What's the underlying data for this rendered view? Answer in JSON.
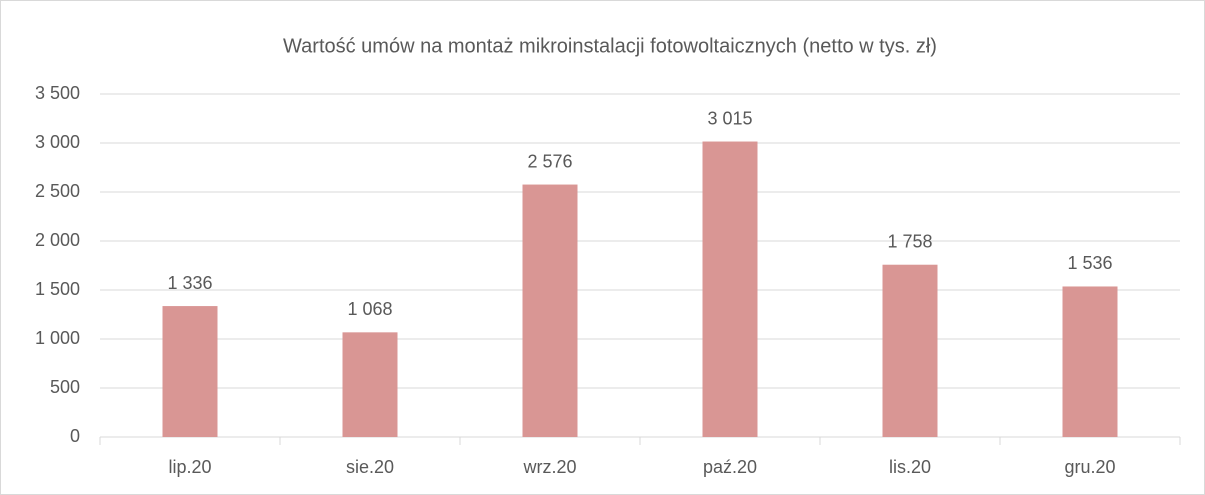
{
  "chart_data": {
    "type": "bar",
    "title": "Wartość umów na montaż mikroinstalacji fotowoltaicznych (netto w tys. zł)",
    "categories": [
      "lip.20",
      "sie.20",
      "wrz.20",
      "paź.20",
      "lis.20",
      "gru.20"
    ],
    "values": [
      1336,
      1068,
      2576,
      3015,
      1758,
      1536
    ],
    "value_labels": [
      "1 336",
      "1 068",
      "2 576",
      "3 015",
      "1 758",
      "1 536"
    ],
    "color": "#d99694",
    "ylim": [
      0,
      3500
    ],
    "yticks": [
      0,
      500,
      {
        "value": 1000,
        "label": "1 000"
      },
      {
        "value": 1500,
        "label": "1 500"
      },
      {
        "value": 2000,
        "label": "2 000"
      },
      {
        "value": 2500,
        "label": "2 500"
      },
      {
        "value": 3000,
        "label": "3 000"
      },
      {
        "value": 3500,
        "label": "3 500"
      }
    ],
    "grid": true
  }
}
